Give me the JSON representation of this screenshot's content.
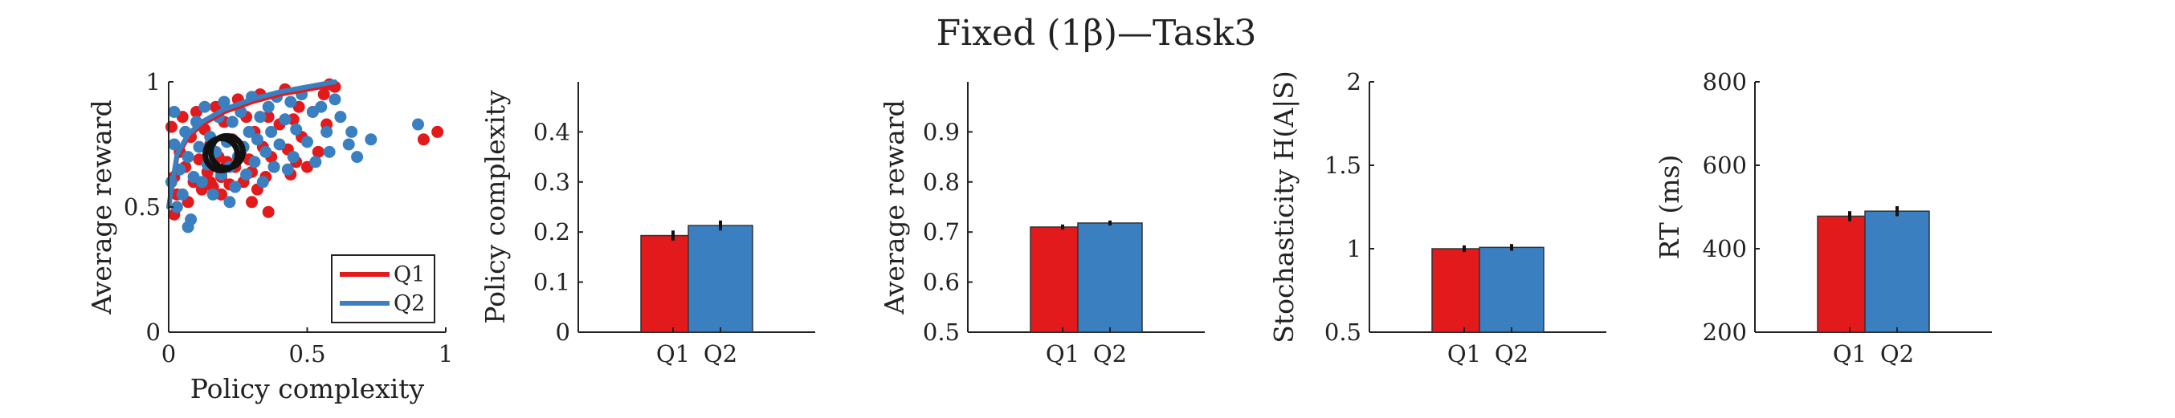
{
  "figure": {
    "title": "Fixed (1β)—Task3"
  },
  "colors": {
    "Q1": "#e31a1c",
    "Q2": "#3a7fc0",
    "axis": "#222222"
  },
  "chart_data": [
    {
      "type": "scatter",
      "xlabel": "Policy complexity",
      "ylabel": "Average reward",
      "xlim": [
        0,
        1
      ],
      "ylim": [
        0,
        1
      ],
      "xticks": [
        "0",
        "0.5",
        "1"
      ],
      "yticks": [
        "0",
        "0.5",
        "1"
      ],
      "legend": {
        "placement": "bottom-right",
        "entries": [
          "Q1",
          "Q2"
        ]
      },
      "series": [
        {
          "name": "Q1",
          "color": "#e31a1c",
          "points": [
            [
              0.01,
              0.82
            ],
            [
              0.02,
              0.62
            ],
            [
              0.03,
              0.55
            ],
            [
              0.02,
              0.47
            ],
            [
              0.04,
              0.72
            ],
            [
              0.05,
              0.86
            ],
            [
              0.06,
              0.66
            ],
            [
              0.07,
              0.52
            ],
            [
              0.08,
              0.78
            ],
            [
              0.09,
              0.6
            ],
            [
              0.1,
              0.88
            ],
            [
              0.11,
              0.69
            ],
            [
              0.12,
              0.57
            ],
            [
              0.13,
              0.81
            ],
            [
              0.14,
              0.64
            ],
            [
              0.15,
              0.75
            ],
            [
              0.16,
              0.58
            ],
            [
              0.17,
              0.9
            ],
            [
              0.18,
              0.7
            ],
            [
              0.19,
              0.62
            ],
            [
              0.2,
              0.84
            ],
            [
              0.21,
              0.68
            ],
            [
              0.22,
              0.59
            ],
            [
              0.23,
              0.77
            ],
            [
              0.24,
              0.66
            ],
            [
              0.25,
              0.93
            ],
            [
              0.26,
              0.72
            ],
            [
              0.27,
              0.6
            ],
            [
              0.28,
              0.86
            ],
            [
              0.29,
              0.69
            ],
            [
              0.3,
              0.64
            ],
            [
              0.31,
              0.8
            ],
            [
              0.32,
              0.57
            ],
            [
              0.33,
              0.95
            ],
            [
              0.34,
              0.74
            ],
            [
              0.35,
              0.62
            ],
            [
              0.36,
              0.86
            ],
            [
              0.37,
              0.7
            ],
            [
              0.38,
              0.66
            ],
            [
              0.4,
              0.83
            ],
            [
              0.42,
              0.97
            ],
            [
              0.43,
              0.73
            ],
            [
              0.44,
              0.63
            ],
            [
              0.45,
              0.85
            ],
            [
              0.46,
              0.68
            ],
            [
              0.47,
              0.9
            ],
            [
              0.48,
              0.78
            ],
            [
              0.5,
              0.66
            ],
            [
              0.52,
              0.88
            ],
            [
              0.54,
              0.72
            ],
            [
              0.56,
              0.95
            ],
            [
              0.57,
              0.83
            ],
            [
              0.58,
              0.99
            ],
            [
              0.6,
              0.98
            ],
            [
              0.36,
              0.48
            ],
            [
              0.3,
              0.52
            ],
            [
              0.19,
              0.55
            ],
            [
              0.15,
              0.6
            ],
            [
              0.97,
              0.8
            ],
            [
              0.92,
              0.77
            ]
          ]
        },
        {
          "name": "Q2",
          "color": "#3a7fc0",
          "points": [
            [
              0.01,
              0.6
            ],
            [
              0.02,
              0.75
            ],
            [
              0.03,
              0.5
            ],
            [
              0.02,
              0.88
            ],
            [
              0.04,
              0.65
            ],
            [
              0.05,
              0.55
            ],
            [
              0.06,
              0.8
            ],
            [
              0.07,
              0.7
            ],
            [
              0.08,
              0.45
            ],
            [
              0.09,
              0.62
            ],
            [
              0.1,
              0.84
            ],
            [
              0.11,
              0.74
            ],
            [
              0.12,
              0.6
            ],
            [
              0.13,
              0.9
            ],
            [
              0.14,
              0.67
            ],
            [
              0.15,
              0.78
            ],
            [
              0.16,
              0.55
            ],
            [
              0.17,
              0.72
            ],
            [
              0.18,
              0.86
            ],
            [
              0.19,
              0.63
            ],
            [
              0.2,
              0.92
            ],
            [
              0.21,
              0.76
            ],
            [
              0.22,
              0.66
            ],
            [
              0.23,
              0.84
            ],
            [
              0.24,
              0.58
            ],
            [
              0.25,
              0.7
            ],
            [
              0.26,
              0.88
            ],
            [
              0.27,
              0.74
            ],
            [
              0.28,
              0.63
            ],
            [
              0.29,
              0.8
            ],
            [
              0.3,
              0.94
            ],
            [
              0.31,
              0.68
            ],
            [
              0.32,
              0.77
            ],
            [
              0.33,
              0.86
            ],
            [
              0.34,
              0.6
            ],
            [
              0.35,
              0.72
            ],
            [
              0.36,
              0.9
            ],
            [
              0.37,
              0.8
            ],
            [
              0.38,
              0.66
            ],
            [
              0.39,
              0.94
            ],
            [
              0.4,
              0.75
            ],
            [
              0.42,
              0.85
            ],
            [
              0.44,
              0.92
            ],
            [
              0.45,
              0.7
            ],
            [
              0.46,
              0.81
            ],
            [
              0.48,
              0.95
            ],
            [
              0.5,
              0.76
            ],
            [
              0.52,
              0.88
            ],
            [
              0.53,
              0.68
            ],
            [
              0.55,
              0.9
            ],
            [
              0.57,
              0.8
            ],
            [
              0.6,
              0.93
            ],
            [
              0.62,
              0.86
            ],
            [
              0.65,
              0.75
            ],
            [
              0.66,
              0.8
            ],
            [
              0.68,
              0.7
            ],
            [
              0.73,
              0.77
            ],
            [
              0.9,
              0.83
            ],
            [
              0.58,
              0.72
            ],
            [
              0.43,
              0.65
            ],
            [
              0.07,
              0.42
            ],
            [
              0.22,
              0.52
            ]
          ]
        }
      ],
      "curves": [
        {
          "name": "Q1",
          "color": "#e31a1c",
          "points": [
            [
              0,
              0.5
            ],
            [
              0.03,
              0.7
            ],
            [
              0.07,
              0.78
            ],
            [
              0.12,
              0.83
            ],
            [
              0.2,
              0.88
            ],
            [
              0.3,
              0.92
            ],
            [
              0.4,
              0.95
            ],
            [
              0.5,
              0.97
            ],
            [
              0.6,
              0.99
            ]
          ]
        },
        {
          "name": "Q2",
          "color": "#3a7fc0",
          "points": [
            [
              0,
              0.5
            ],
            [
              0.03,
              0.71
            ],
            [
              0.07,
              0.79
            ],
            [
              0.12,
              0.84
            ],
            [
              0.2,
              0.89
            ],
            [
              0.3,
              0.93
            ],
            [
              0.4,
              0.96
            ],
            [
              0.5,
              0.98
            ],
            [
              0.6,
              1.0
            ]
          ]
        }
      ],
      "group_means": [
        {
          "name": "Q1",
          "x": 0.19,
          "y": 0.71
        },
        {
          "name": "Q2",
          "x": 0.21,
          "y": 0.72
        }
      ]
    },
    {
      "type": "bar",
      "ylabel": "Policy complexity",
      "categories": [
        "Q1",
        "Q2"
      ],
      "values": [
        0.193,
        0.213
      ],
      "errors": [
        0.01,
        0.01
      ],
      "ylim": [
        0,
        0.5
      ],
      "yticks": [
        "0",
        "0.1",
        "0.2",
        "0.3",
        "0.4"
      ]
    },
    {
      "type": "bar",
      "ylabel": "Average reward",
      "categories": [
        "Q1",
        "Q2"
      ],
      "values": [
        0.71,
        0.718
      ],
      "errors": [
        0.005,
        0.005
      ],
      "ylim": [
        0.5,
        1.0
      ],
      "yticks": [
        "0.5",
        "0.6",
        "0.7",
        "0.8",
        "0.9"
      ]
    },
    {
      "type": "bar",
      "ylabel": "Stochasticity H(A|S)",
      "categories": [
        "Q1",
        "Q2"
      ],
      "values": [
        1.0,
        1.008
      ],
      "errors": [
        0.02,
        0.02
      ],
      "ylim": [
        0.5,
        2
      ],
      "yticks": [
        "0.5",
        "1",
        "1.5",
        "2"
      ]
    },
    {
      "type": "bar",
      "ylabel": "RT (ms)",
      "categories": [
        "Q1",
        "Q2"
      ],
      "values": [
        478,
        490
      ],
      "errors": [
        12,
        12
      ],
      "ylim": [
        200,
        800
      ],
      "yticks": [
        "200",
        "400",
        "600",
        "800"
      ]
    }
  ]
}
